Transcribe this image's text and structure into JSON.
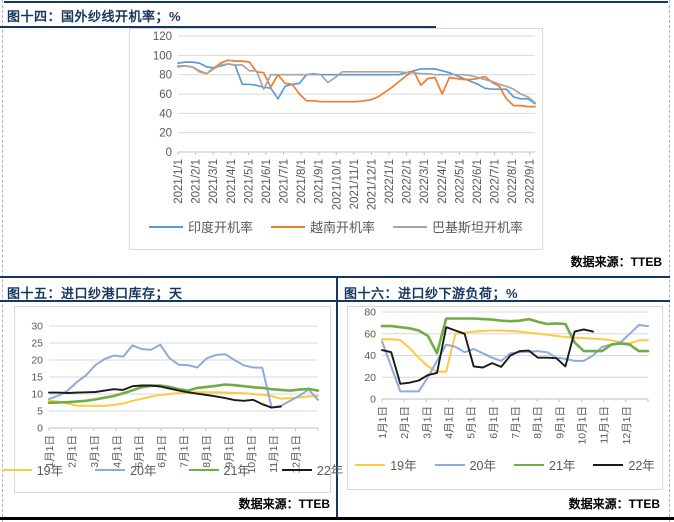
{
  "page": {
    "border_color": "#17375e",
    "panels": [
      {
        "title": "图十四：国外纱线开机率；%",
        "source": "数据来源：TTEB"
      },
      {
        "title": "图十五：进口纱港口库存；天",
        "source": "数据来源：TTEB"
      },
      {
        "title": "图十六：进口纱下游负荷；%",
        "source": "数据来源：TTEB"
      }
    ]
  },
  "chart_data": [
    {
      "type": "line",
      "title": "图十四：国外纱线开机率；%",
      "xlabel": "",
      "ylabel": "",
      "ylim": [
        0,
        120
      ],
      "yticks": [
        0,
        20,
        40,
        60,
        80,
        100,
        120
      ],
      "grid": true,
      "legend_position": "bottom",
      "x_labels": [
        "2021/1/1",
        "2021/2/1",
        "2021/3/1",
        "2021/4/1",
        "2021/5/1",
        "2021/6/1",
        "2021/7/1",
        "2021/8/1",
        "2021/9/1",
        "2021/10/1",
        "2021/11/1",
        "2021/12/1",
        "2022/1/1",
        "2022/2/1",
        "2022/3/1",
        "2022/4/1",
        "2022/5/1",
        "2022/6/1",
        "2022/7/1",
        "2022/8/1",
        "2022/9/1"
      ],
      "series": [
        {
          "name": "印度开机率",
          "color": "#5B9BD5",
          "values": [
            92,
            93,
            93,
            92,
            88,
            87,
            89,
            91,
            90,
            70,
            70,
            69,
            67,
            66,
            55,
            68,
            70,
            71,
            80,
            81,
            80,
            80,
            80,
            80,
            80,
            80,
            80,
            80,
            80,
            80,
            80,
            80,
            82,
            84,
            86,
            86,
            86,
            84,
            82,
            79,
            76,
            73,
            70,
            66,
            65,
            65,
            65,
            57,
            55,
            55,
            50
          ]
        },
        {
          "name": "越南开机率",
          "color": "#ED7D31",
          "values": [
            89,
            89,
            88,
            84,
            81,
            87,
            92,
            95,
            94,
            94,
            93,
            83,
            82,
            67,
            80,
            71,
            70,
            60,
            53,
            53,
            52,
            52,
            52,
            52,
            52,
            52,
            53,
            54,
            57,
            62,
            67,
            73,
            79,
            84,
            69,
            76,
            77,
            60,
            77,
            76,
            75,
            75,
            76,
            78,
            72,
            68,
            55,
            48,
            48,
            47,
            47
          ]
        },
        {
          "name": "巴基斯坦开机率",
          "color": "#A5A5A5",
          "values": [
            88,
            89,
            88,
            83,
            81,
            86,
            90,
            91,
            90,
            90,
            84,
            84,
            65,
            80,
            80,
            80,
            80,
            80,
            80,
            80,
            80,
            72,
            77,
            83,
            83,
            83,
            83,
            83,
            83,
            83,
            83,
            83,
            82,
            82,
            81,
            81,
            80,
            80,
            80,
            80,
            80,
            79,
            77,
            75,
            73,
            70,
            68,
            65,
            60,
            57,
            51
          ]
        }
      ],
      "source": "数据来源：TTEB"
    },
    {
      "type": "line",
      "title": "图十五：进口纱港口库存；天",
      "xlabel": "",
      "ylabel": "",
      "ylim": [
        0,
        30
      ],
      "yticks": [
        0,
        5,
        10,
        15,
        20,
        25,
        30
      ],
      "grid": true,
      "legend_position": "bottom",
      "x_labels": [
        "1月1日",
        "2月1日",
        "3月1日",
        "4月1日",
        "5月1日",
        "6月1日",
        "7月1日",
        "8月1日",
        "9月1日",
        "10月1日",
        "11月1日",
        "12月1日"
      ],
      "series": [
        {
          "name": "19年",
          "color": "#FFC940",
          "values": [
            8,
            7.8,
            7.2,
            6.6,
            6.5,
            6.5,
            6.5,
            6.8,
            7.2,
            8,
            8.6,
            9.2,
            9.7,
            10,
            10.3,
            10.5,
            10.5,
            10.5,
            10.5,
            10.4,
            10.3,
            10.2,
            10,
            9.8,
            9.4,
            8.6,
            8.8,
            9,
            9.3,
            9.5
          ]
        },
        {
          "name": "20年",
          "color": "#8FAADC",
          "values": [
            8.5,
            9.5,
            11,
            13.5,
            15.5,
            18.5,
            20.3,
            21.3,
            21,
            24.3,
            23.2,
            23,
            24.5,
            20.5,
            18.6,
            18.5,
            17.8,
            20.5,
            21.5,
            21.7,
            20,
            18.4,
            17.8,
            17.7,
            6,
            6.5,
            8,
            9.5,
            11.3,
            8.3
          ]
        },
        {
          "name": "21年",
          "color": "#70AD47",
          "values": [
            7.4,
            7.5,
            7.6,
            7.8,
            8,
            8.4,
            8.9,
            9.4,
            10.2,
            11.1,
            12,
            12.4,
            12.5,
            12.1,
            11.4,
            11,
            11.8,
            12.1,
            12.4,
            12.8,
            12.6,
            12.3,
            12,
            11.8,
            11.4,
            11.2,
            11,
            11.3,
            11.5,
            11
          ]
        },
        {
          "name": "22年",
          "color": "#1A1A1A",
          "values": [
            10.4,
            10.4,
            10.3,
            10.4,
            10.5,
            10.6,
            11,
            11.4,
            11.2,
            12.3,
            12.5,
            12.5,
            12.2,
            11.6,
            11,
            10.5,
            10.1,
            9.7,
            9.3,
            8.8,
            8.2,
            8,
            8.3,
            7,
            6,
            6.3,
            null,
            null,
            null,
            null
          ]
        }
      ],
      "source": "数据来源：TTEB"
    },
    {
      "type": "line",
      "title": "图十六：进口纱下游负荷；%",
      "xlabel": "",
      "ylabel": "",
      "ylim": [
        0,
        80
      ],
      "yticks": [
        0,
        20,
        40,
        60,
        80
      ],
      "grid": true,
      "legend_position": "bottom",
      "x_labels": [
        "1月1日",
        "2月1日",
        "3月1日",
        "4月1日",
        "5月1日",
        "6月1日",
        "7月1日",
        "8月1日",
        "9月1日",
        "10月1日",
        "11月1日",
        "12月1日"
      ],
      "series": [
        {
          "name": "19年",
          "color": "#FFC940",
          "values": [
            55,
            55,
            54,
            47,
            38,
            30,
            25,
            25,
            60,
            61,
            62,
            62.5,
            63,
            63,
            62.5,
            62,
            61,
            60,
            59,
            58,
            57,
            56.5,
            56,
            55.5,
            55,
            54,
            52,
            51,
            54,
            54
          ]
        },
        {
          "name": "20年",
          "color": "#8FAADC",
          "values": [
            53,
            30,
            7,
            7,
            7,
            20,
            35,
            50,
            48,
            43,
            46,
            42,
            38,
            35,
            42,
            43,
            43.5,
            44,
            43,
            38,
            37,
            35,
            35,
            40,
            48,
            50,
            52,
            60,
            68,
            67
          ]
        },
        {
          "name": "21年",
          "color": "#70AD47",
          "values": [
            67,
            67,
            66,
            65,
            63,
            58,
            42,
            74,
            74,
            74,
            74,
            73.5,
            73,
            72,
            71.5,
            72,
            73.5,
            71,
            69,
            69.5,
            69,
            52,
            44,
            44,
            44,
            50,
            51,
            50,
            44,
            44
          ]
        },
        {
          "name": "22年",
          "color": "#1A1A1A",
          "values": [
            45,
            43,
            14,
            15,
            17,
            22,
            24,
            66,
            63,
            60,
            30,
            29,
            33,
            29.5,
            40,
            44,
            44.5,
            38,
            38,
            37.5,
            30,
            62,
            64,
            62,
            null,
            null,
            null,
            null,
            null,
            null
          ]
        }
      ],
      "source": "数据来源：TTEB"
    }
  ]
}
